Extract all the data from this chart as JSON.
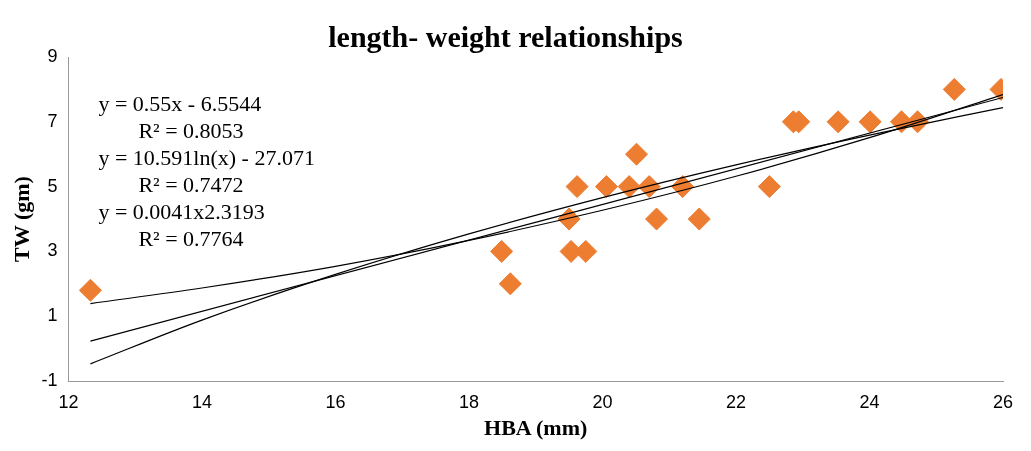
{
  "chart_data": {
    "type": "scatter",
    "title": "length- weight relationships",
    "xlabel": "HBA (mm)",
    "ylabel": "TW (gm)",
    "xlim": [
      12,
      26
    ],
    "xticks": [
      12,
      14,
      16,
      18,
      20,
      22,
      24,
      26
    ],
    "ylim": [
      -1,
      9
    ],
    "yticks": [
      -1,
      1,
      3,
      5,
      7,
      9
    ],
    "grid": false,
    "legend": false,
    "marker": "diamond",
    "series": [
      {
        "color": "#ed7d31",
        "x": [
          12.33,
          18.49,
          18.62,
          19.5,
          19.53,
          19.75,
          19.62,
          20.06,
          20.4,
          20.51,
          20.7,
          20.81,
          21.2,
          21.45,
          22.5,
          22.86,
          22.94,
          23.53,
          24.01,
          24.48,
          24.72,
          25.27,
          25.97
        ],
        "values": [
          1.8,
          3,
          2,
          4,
          3,
          3,
          5,
          5,
          5,
          6,
          5,
          4,
          5,
          4,
          5,
          7,
          7,
          7,
          7,
          7,
          7,
          8,
          8
        ]
      },
      {
        "type": "line",
        "marker": "none",
        "color": "#000000",
        "x": [
          12.33,
          26
        ],
        "values": [
          0.23,
          7.75
        ]
      },
      {
        "type": "line",
        "marker": "none",
        "color": "#000000",
        "x": [
          12.33,
          14,
          16,
          18,
          20,
          22,
          24,
          26
        ],
        "values": [
          -0.47,
          0.88,
          2.29,
          3.54,
          4.66,
          5.67,
          6.59,
          7.44
        ]
      },
      {
        "type": "line",
        "marker": "none",
        "color": "#000000",
        "x": [
          12.33,
          14,
          16,
          18,
          20,
          22,
          24,
          26
        ],
        "values": [
          1.39,
          1.87,
          2.54,
          3.34,
          4.27,
          5.32,
          6.51,
          7.84
        ]
      }
    ],
    "annotations": [
      "y = 0.55x - 6.5544",
      "R² = 0.8053",
      "y = 10.591ln(x) - 27.071",
      "R² = 0.7472",
      "y = 0.0041x2.3193",
      "R² = 0.7764"
    ]
  }
}
